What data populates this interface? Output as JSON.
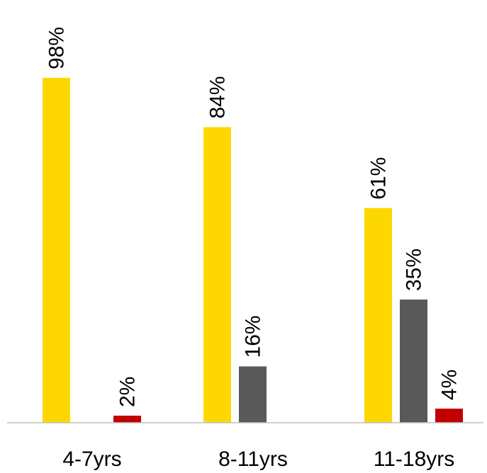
{
  "chart_data": {
    "type": "bar",
    "title": "",
    "xlabel": "",
    "ylabel": "",
    "categories": [
      "4-7yrs",
      "8-11yrs",
      "11-18yrs"
    ],
    "series": [
      {
        "values": [
          98,
          84,
          61
        ],
        "labels": [
          "98%",
          "84%",
          "61%"
        ],
        "color": "#FFD700"
      },
      {
        "values": [
          null,
          16,
          35
        ],
        "labels": [
          "",
          "16%",
          "35%"
        ],
        "color": "#595959"
      },
      {
        "values": [
          2,
          null,
          4
        ],
        "labels": [
          "2%",
          "",
          "4%"
        ],
        "color": "#C00000"
      }
    ],
    "ylim": [
      0,
      100
    ],
    "grid": false,
    "legend": "none",
    "axis_color": "#BFBFBF"
  }
}
